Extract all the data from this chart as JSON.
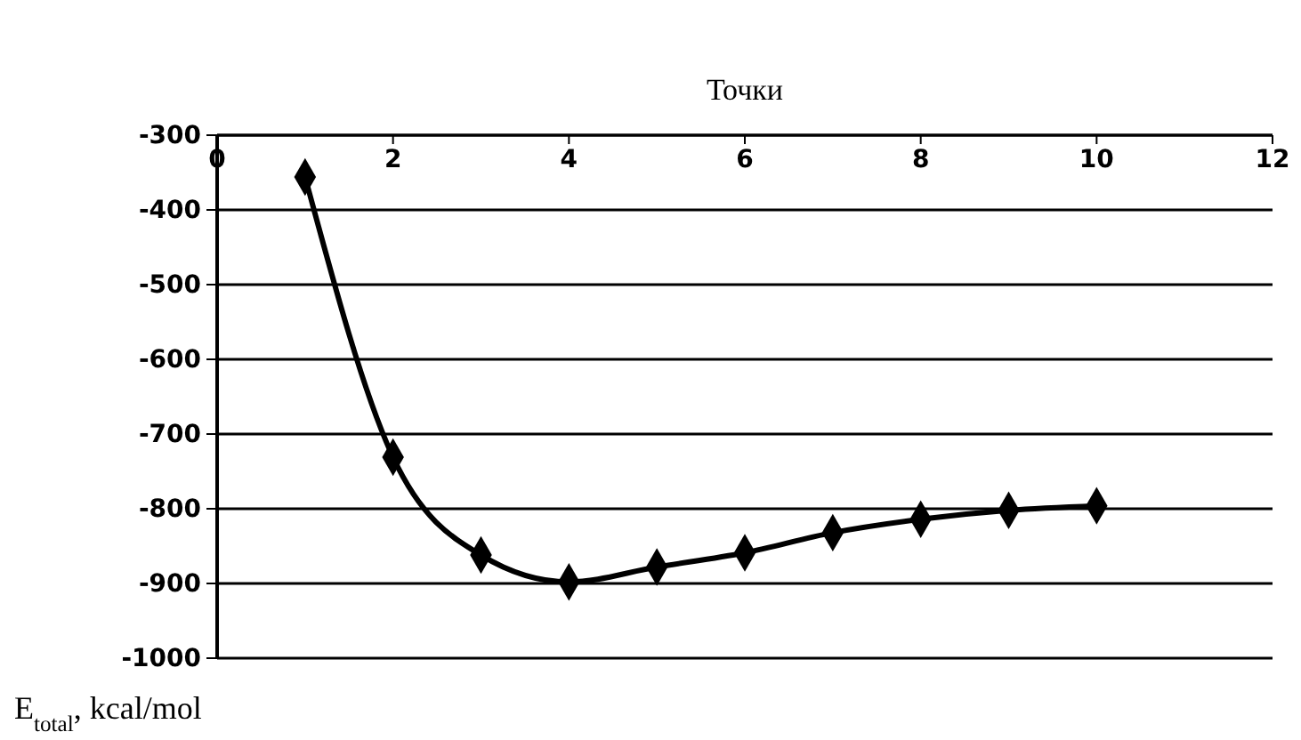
{
  "chart_data": {
    "type": "line",
    "xlabel": "Точки",
    "ylabel": "E$_{total}$, kcal/mol",
    "x": [
      1,
      2,
      3,
      4,
      5,
      6,
      7,
      8,
      9,
      10
    ],
    "series": [
      {
        "color": "#000000",
        "values": [
          -356,
          -731,
          -862,
          -898,
          -878,
          -859,
          -832,
          -814,
          -802,
          -796
        ]
      }
    ],
    "xlim": [
      0,
      12
    ],
    "xticks": [
      0,
      2,
      4,
      6,
      8,
      10,
      12
    ],
    "ylim": [
      -1000,
      -300
    ],
    "yticks": [
      -1000,
      -900,
      -800,
      -700,
      -600,
      -500,
      -400,
      -300
    ],
    "grid": "y",
    "marker": "diamond",
    "line_style": "solid"
  }
}
